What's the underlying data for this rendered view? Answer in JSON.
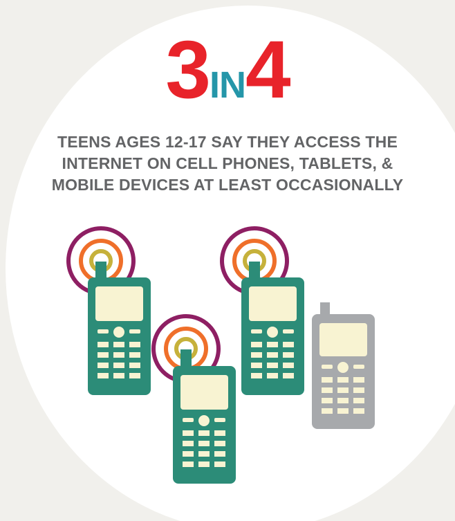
{
  "headline": {
    "number_left": "3",
    "connector": "IN",
    "number_right": "4"
  },
  "subtitle": {
    "line1": "TEENS AGES 12-17 SAY THEY ACCESS THE",
    "line2": "INTERNET ON CELL PHONES, TABLETS, &",
    "line3": "MOBILE DEVICES AT LEAST OCCASIONALLY"
  },
  "colors": {
    "number": "#e8232a",
    "connector": "#2596a9",
    "text": "#636466",
    "phone_active": "#2c8c78",
    "phone_inactive": "#a7a9ac",
    "screen": "#f8f3d2",
    "ring_outer": "#8e1f63",
    "ring_middle": "#ef6f2a",
    "ring_inner": "#c6b13b"
  },
  "icons": {
    "active_phone": "cell-phone-signal-icon",
    "inactive_phone": "cell-phone-icon"
  }
}
